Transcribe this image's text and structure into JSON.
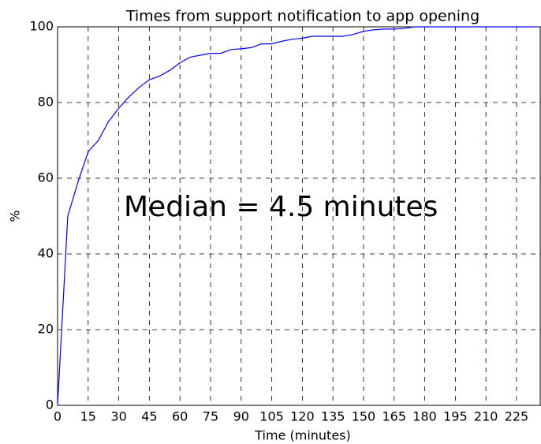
{
  "chart_data": {
    "type": "line",
    "title": "Times from support notification to app opening",
    "xlabel": "Time (minutes)",
    "ylabel": "%",
    "annotation": "Median = 4.5 minutes",
    "x": [
      0,
      5,
      10,
      15,
      20,
      25,
      30,
      35,
      40,
      45,
      50,
      55,
      60,
      65,
      70,
      75,
      80,
      85,
      90,
      95,
      100,
      105,
      110,
      115,
      120,
      125,
      130,
      135,
      140,
      145,
      150,
      155,
      160,
      165,
      170,
      175,
      180,
      185,
      190,
      195,
      200,
      205,
      210,
      215,
      220,
      225,
      230,
      235
    ],
    "series": [
      {
        "name": "Times",
        "color": "#0000ff",
        "values": [
          0,
          50,
          59,
          67,
          70,
          75,
          78.5,
          81.5,
          84,
          86,
          87,
          88.5,
          90.5,
          92,
          92.5,
          93,
          93,
          94,
          94.2,
          94.5,
          95.5,
          95.5,
          96.2,
          96.7,
          97,
          97.5,
          97.5,
          97.5,
          97.5,
          98,
          98.8,
          99.2,
          99.4,
          99.4,
          99.6,
          100,
          100,
          100,
          100,
          100,
          100,
          100,
          100,
          100,
          100,
          100,
          100,
          100
        ]
      }
    ],
    "xlim": [
      0,
      237
    ],
    "ylim": [
      0,
      100
    ],
    "xticks": [
      0,
      15,
      30,
      45,
      60,
      75,
      90,
      105,
      120,
      135,
      150,
      165,
      180,
      195,
      210,
      225
    ],
    "yticks": [
      0,
      20,
      40,
      60,
      80,
      100
    ],
    "grid": true
  }
}
